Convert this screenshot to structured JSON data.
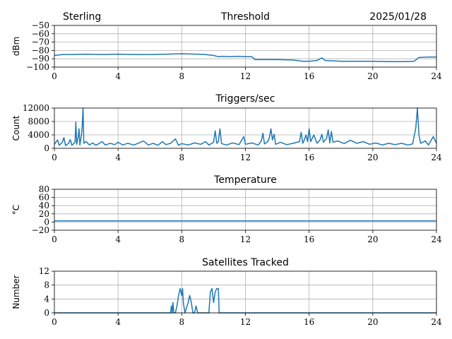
{
  "header": {
    "station": "Sterling",
    "date": "2025/01/28"
  },
  "chart_data": [
    {
      "type": "line",
      "title": "Threshold",
      "ylabel": "dBm",
      "xlim": [
        0,
        24
      ],
      "ylim": [
        -100,
        -50
      ],
      "xticks": [
        0,
        4,
        8,
        12,
        16,
        20,
        24
      ],
      "yticks": [
        -100,
        -90,
        -80,
        -70,
        -60,
        -50
      ],
      "ytick_labels": [
        "−100",
        "−90",
        "−80",
        "−70",
        "−60",
        "−50"
      ],
      "grid": true,
      "series": [
        {
          "color": "#1f77b4",
          "points": [
            [
              0,
              -86
            ],
            [
              0.5,
              -85
            ],
            [
              1,
              -85
            ],
            [
              2,
              -84.5
            ],
            [
              3,
              -85
            ],
            [
              4,
              -84.5
            ],
            [
              5,
              -85
            ],
            [
              6,
              -85
            ],
            [
              7,
              -84.5
            ],
            [
              8,
              -84
            ],
            [
              9,
              -84.5
            ],
            [
              9.5,
              -85
            ],
            [
              10,
              -86
            ],
            [
              10.3,
              -87.5
            ],
            [
              10.6,
              -87
            ],
            [
              11,
              -87.5
            ],
            [
              11.5,
              -87
            ],
            [
              12,
              -87.5
            ],
            [
              12.4,
              -87.5
            ],
            [
              12.6,
              -91
            ],
            [
              13,
              -91
            ],
            [
              14,
              -91
            ],
            [
              15,
              -91.5
            ],
            [
              15.6,
              -93
            ],
            [
              16,
              -93
            ],
            [
              16.5,
              -92
            ],
            [
              16.8,
              -89
            ],
            [
              17,
              -92
            ],
            [
              18,
              -93
            ],
            [
              19,
              -93
            ],
            [
              20,
              -93
            ],
            [
              21,
              -93.5
            ],
            [
              22,
              -93.5
            ],
            [
              22.6,
              -93
            ],
            [
              22.9,
              -88.5
            ],
            [
              23.5,
              -88
            ],
            [
              24,
              -88
            ]
          ]
        }
      ]
    },
    {
      "type": "line",
      "title": "Triggers/sec",
      "ylabel": "Count",
      "xlim": [
        0,
        24
      ],
      "ylim": [
        0,
        12000
      ],
      "xticks": [
        0,
        4,
        8,
        12,
        16,
        20,
        24
      ],
      "yticks": [
        0,
        4000,
        8000,
        12000
      ],
      "ytick_labels": [
        "0",
        "4000",
        "8000",
        "12000"
      ],
      "grid": true,
      "series": [
        {
          "color": "#1f77b4",
          "points": [
            [
              0,
              1200
            ],
            [
              0.2,
              2500
            ],
            [
              0.3,
              900
            ],
            [
              0.5,
              1800
            ],
            [
              0.6,
              3200
            ],
            [
              0.7,
              800
            ],
            [
              0.9,
              1500
            ],
            [
              1.0,
              2600
            ],
            [
              1.1,
              900
            ],
            [
              1.3,
              1800
            ],
            [
              1.35,
              7800
            ],
            [
              1.4,
              1200
            ],
            [
              1.5,
              3500
            ],
            [
              1.55,
              5800
            ],
            [
              1.6,
              1000
            ],
            [
              1.7,
              4000
            ],
            [
              1.75,
              6500
            ],
            [
              1.8,
              12000
            ],
            [
              1.85,
              1500
            ],
            [
              2.0,
              2000
            ],
            [
              2.2,
              1000
            ],
            [
              2.4,
              1600
            ],
            [
              2.6,
              900
            ],
            [
              2.8,
              1400
            ],
            [
              3.0,
              2000
            ],
            [
              3.2,
              1000
            ],
            [
              3.5,
              1500
            ],
            [
              3.8,
              1100
            ],
            [
              4.0,
              1800
            ],
            [
              4.3,
              1000
            ],
            [
              4.6,
              1500
            ],
            [
              5.0,
              1000
            ],
            [
              5.3,
              1600
            ],
            [
              5.6,
              2200
            ],
            [
              5.9,
              1000
            ],
            [
              6.2,
              1500
            ],
            [
              6.5,
              900
            ],
            [
              6.8,
              2000
            ],
            [
              7.0,
              1100
            ],
            [
              7.3,
              1500
            ],
            [
              7.6,
              2800
            ],
            [
              7.8,
              900
            ],
            [
              8.0,
              1400
            ],
            [
              8.4,
              1000
            ],
            [
              8.8,
              1600
            ],
            [
              9.2,
              1200
            ],
            [
              9.5,
              2000
            ],
            [
              9.7,
              1000
            ],
            [
              10.0,
              1800
            ],
            [
              10.1,
              5200
            ],
            [
              10.2,
              1500
            ],
            [
              10.3,
              2000
            ],
            [
              10.4,
              5800
            ],
            [
              10.5,
              1400
            ],
            [
              10.8,
              1000
            ],
            [
              11.2,
              1600
            ],
            [
              11.6,
              1100
            ],
            [
              11.9,
              3500
            ],
            [
              12.0,
              1200
            ],
            [
              12.4,
              1600
            ],
            [
              12.8,
              1000
            ],
            [
              13.0,
              2200
            ],
            [
              13.1,
              4500
            ],
            [
              13.2,
              1300
            ],
            [
              13.4,
              2000
            ],
            [
              13.5,
              3000
            ],
            [
              13.6,
              5800
            ],
            [
              13.7,
              2500
            ],
            [
              13.8,
              4200
            ],
            [
              13.9,
              1200
            ],
            [
              14.2,
              1800
            ],
            [
              14.6,
              1100
            ],
            [
              15.0,
              1500
            ],
            [
              15.4,
              2000
            ],
            [
              15.5,
              4800
            ],
            [
              15.6,
              1500
            ],
            [
              15.7,
              2500
            ],
            [
              15.8,
              4000
            ],
            [
              15.9,
              2000
            ],
            [
              16.0,
              5800
            ],
            [
              16.1,
              2000
            ],
            [
              16.3,
              4000
            ],
            [
              16.5,
              1500
            ],
            [
              16.7,
              2600
            ],
            [
              16.8,
              4200
            ],
            [
              16.9,
              1800
            ],
            [
              17.1,
              3000
            ],
            [
              17.2,
              5500
            ],
            [
              17.3,
              1600
            ],
            [
              17.4,
              5000
            ],
            [
              17.5,
              1800
            ],
            [
              17.8,
              2200
            ],
            [
              18.2,
              1400
            ],
            [
              18.6,
              2400
            ],
            [
              19.0,
              1500
            ],
            [
              19.4,
              2000
            ],
            [
              19.8,
              1200
            ],
            [
              20.2,
              1600
            ],
            [
              20.6,
              1000
            ],
            [
              21.0,
              1500
            ],
            [
              21.4,
              1100
            ],
            [
              21.8,
              1500
            ],
            [
              22.2,
              1000
            ],
            [
              22.5,
              1300
            ],
            [
              22.7,
              6000
            ],
            [
              22.8,
              12000
            ],
            [
              22.9,
              4000
            ],
            [
              23.0,
              1500
            ],
            [
              23.3,
              2200
            ],
            [
              23.5,
              1000
            ],
            [
              23.8,
              3500
            ],
            [
              24,
              1500
            ]
          ]
        }
      ]
    },
    {
      "type": "line",
      "title": "Temperature",
      "ylabel": "°C",
      "xlim": [
        0,
        24
      ],
      "ylim": [
        -20,
        80
      ],
      "xticks": [
        0,
        4,
        8,
        12,
        16,
        20,
        24
      ],
      "yticks": [
        -20,
        0,
        20,
        40,
        60,
        80
      ],
      "ytick_labels": [
        "−20",
        "0",
        "20",
        "40",
        "60",
        "80"
      ],
      "grid": true,
      "series": [
        {
          "color": "#1f77b4",
          "points": [
            [
              0,
              3
            ],
            [
              24,
              3
            ]
          ]
        }
      ]
    },
    {
      "type": "line",
      "title": "Satellites Tracked",
      "ylabel": "Number",
      "xlim": [
        0,
        24
      ],
      "ylim": [
        0,
        12
      ],
      "xticks": [
        0,
        4,
        8,
        12,
        16,
        20,
        24
      ],
      "yticks": [
        0,
        4,
        8,
        12
      ],
      "ytick_labels": [
        "0",
        "4",
        "8",
        "12"
      ],
      "grid": true,
      "series": [
        {
          "color": "#1f77b4",
          "points": [
            [
              0,
              0
            ],
            [
              7.3,
              0
            ],
            [
              7.35,
              2
            ],
            [
              7.4,
              0
            ],
            [
              7.45,
              3
            ],
            [
              7.5,
              0
            ],
            [
              7.6,
              0
            ],
            [
              7.7,
              2
            ],
            [
              7.8,
              5
            ],
            [
              7.9,
              7
            ],
            [
              8.0,
              5
            ],
            [
              8.05,
              7
            ],
            [
              8.1,
              3
            ],
            [
              8.2,
              0
            ],
            [
              8.4,
              3
            ],
            [
              8.5,
              5
            ],
            [
              8.6,
              3
            ],
            [
              8.7,
              0
            ],
            [
              8.8,
              0
            ],
            [
              8.9,
              2
            ],
            [
              9.0,
              0
            ],
            [
              9.7,
              0
            ],
            [
              9.8,
              6
            ],
            [
              9.9,
              7
            ],
            [
              10.0,
              3
            ],
            [
              10.1,
              6
            ],
            [
              10.2,
              7
            ],
            [
              10.3,
              7
            ],
            [
              10.35,
              0
            ],
            [
              24,
              0
            ]
          ]
        }
      ]
    }
  ]
}
